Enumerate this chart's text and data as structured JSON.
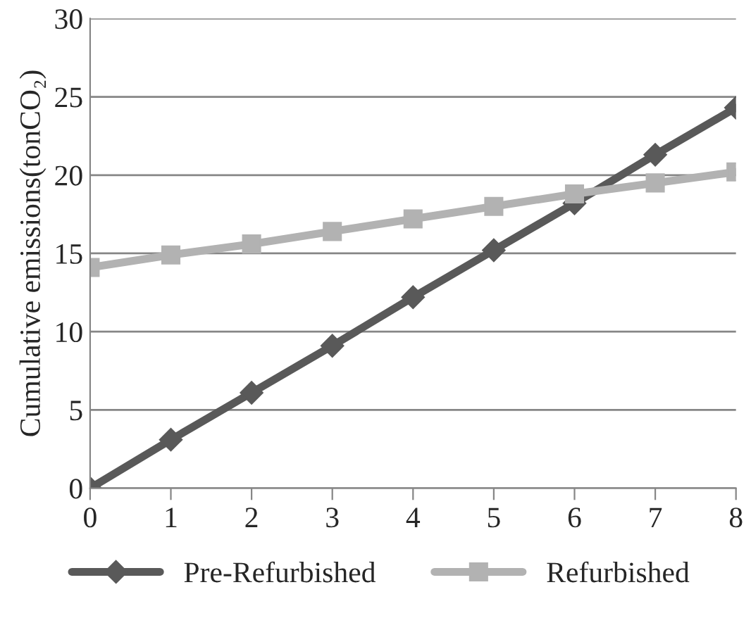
{
  "chart_data": {
    "type": "line",
    "ylabel": "Cumulative emissions(tonCO₂)",
    "categories": [
      "0",
      "1",
      "2",
      "3",
      "4",
      "5",
      "6",
      "7",
      "8"
    ],
    "series": [
      {
        "name": "Pre-Refurbished",
        "color": "#595959",
        "marker": "diamond",
        "values": [
          0,
          3.1,
          6.1,
          9.1,
          12.2,
          15.2,
          18.2,
          21.3,
          24.3
        ]
      },
      {
        "name": "Refurbished",
        "color": "#b2b2b2",
        "marker": "square",
        "values": [
          14.1,
          14.9,
          15.6,
          16.4,
          17.2,
          18.0,
          18.8,
          19.5,
          20.2
        ]
      }
    ],
    "ylim": [
      0,
      30
    ],
    "yticks": [
      0,
      5,
      10,
      15,
      20,
      25,
      30
    ],
    "grid": "y",
    "legend": "bottom",
    "line_style": "solid"
  }
}
